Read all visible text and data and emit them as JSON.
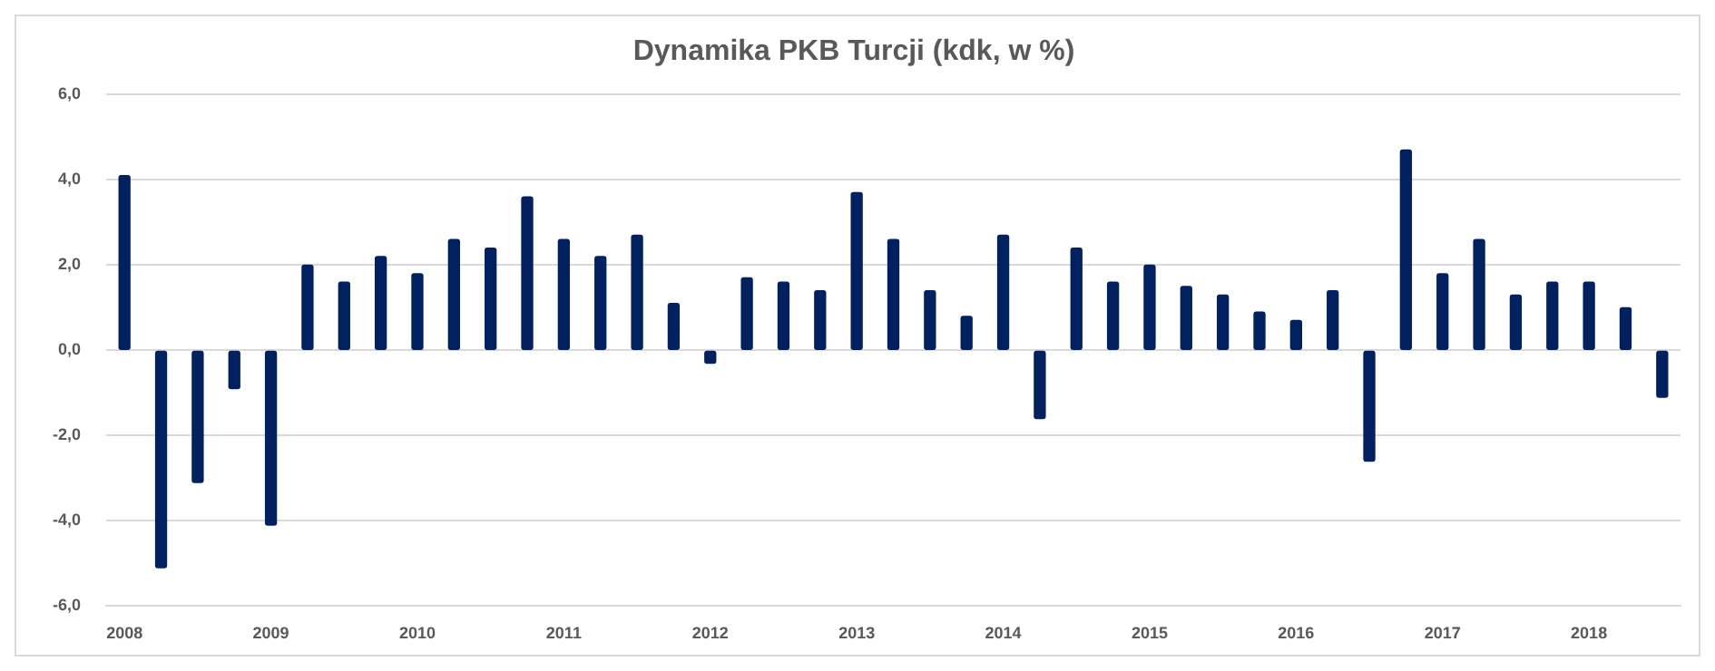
{
  "chart_data": {
    "type": "bar",
    "title": "Dynamika PKB Turcji (kdk, w %)",
    "categories": [
      "2008",
      null,
      null,
      null,
      "2009",
      null,
      null,
      null,
      "2010",
      null,
      null,
      null,
      "2011",
      null,
      null,
      null,
      "2012",
      null,
      null,
      null,
      "2013",
      null,
      null,
      null,
      "2014",
      null,
      null,
      null,
      "2015",
      null,
      null,
      null,
      "2016",
      null,
      null,
      null,
      "2017",
      null,
      null,
      null,
      "2018",
      null,
      null
    ],
    "values": [
      4.1,
      -5.1,
      -3.1,
      -0.9,
      -4.1,
      2.0,
      1.6,
      2.2,
      1.8,
      2.6,
      2.4,
      3.6,
      2.6,
      2.2,
      2.7,
      1.1,
      -0.3,
      1.7,
      1.6,
      1.4,
      3.7,
      2.6,
      1.4,
      0.8,
      2.7,
      -1.6,
      2.4,
      1.6,
      2.0,
      1.5,
      1.3,
      0.9,
      0.7,
      1.4,
      -2.6,
      4.7,
      1.8,
      2.6,
      1.3,
      1.6,
      1.6,
      1.0,
      -1.1
    ],
    "color": "#002060",
    "ylim": [
      -6,
      6
    ],
    "yticks": [
      {
        "value": -6,
        "label": "-6,0"
      },
      {
        "value": -4,
        "label": "-4,0"
      },
      {
        "value": -2,
        "label": "-2,0"
      },
      {
        "value": 0,
        "label": "0,0"
      },
      {
        "value": 2,
        "label": "2,0"
      },
      {
        "value": 4,
        "label": "4,0"
      },
      {
        "value": 6,
        "label": "6,0"
      }
    ],
    "grid": "y",
    "legend": false
  }
}
